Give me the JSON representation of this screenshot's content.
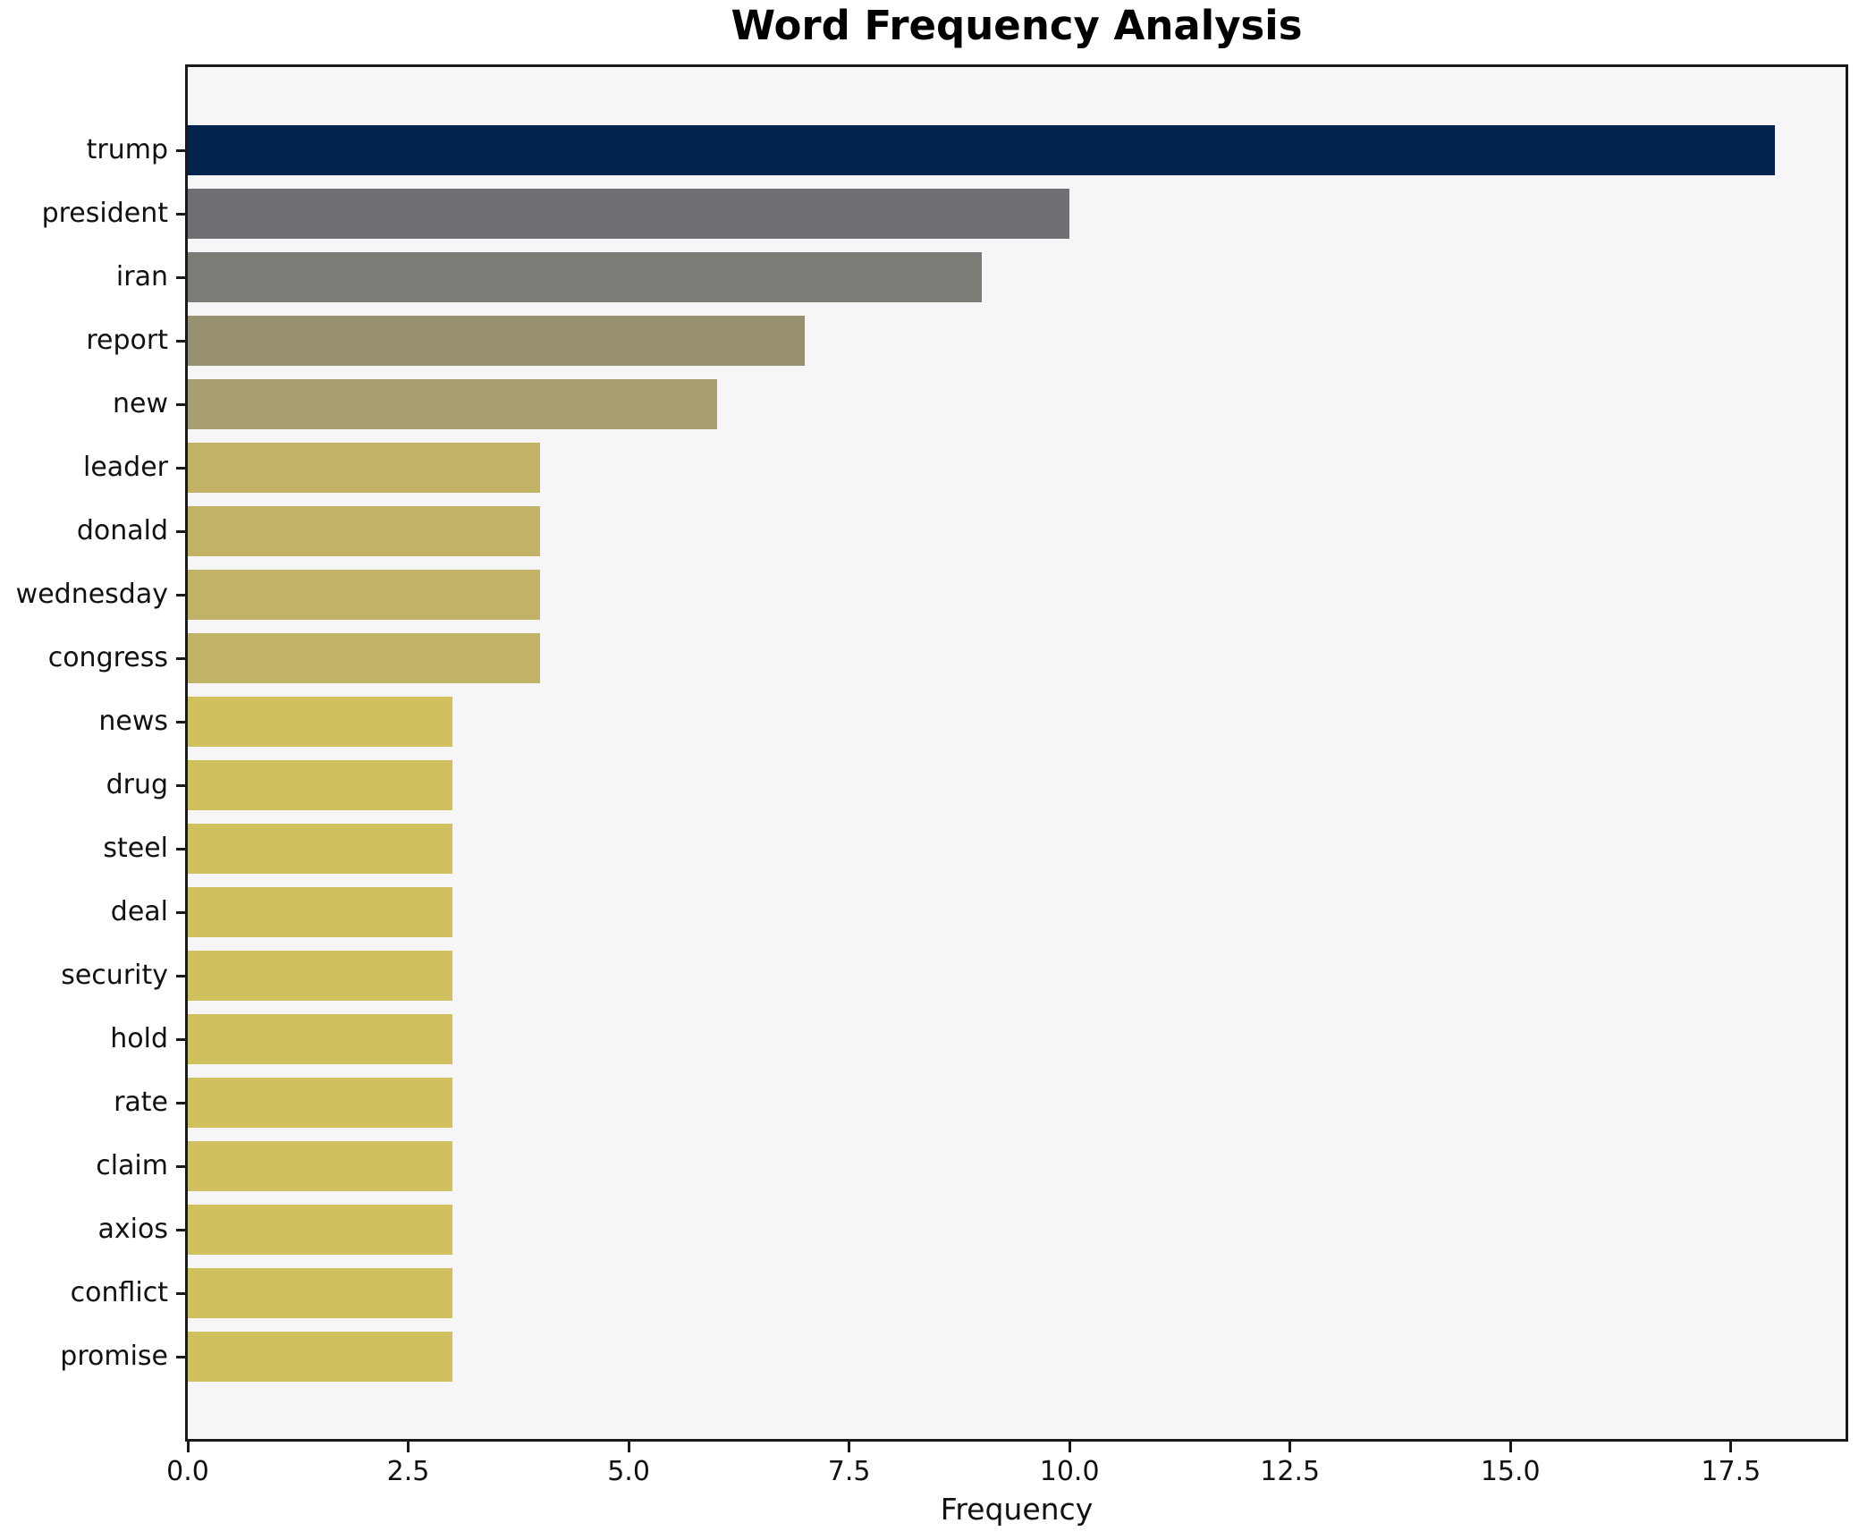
{
  "title": "Word Frequency Analysis",
  "axes": {
    "x_label": "Frequency",
    "y_label": ""
  },
  "style": {
    "figure_bg": "#ffffff",
    "plot_bg": "#f6f6f8",
    "spine_color": "#1a1a1a",
    "text_color": "#111111"
  },
  "chart_data": {
    "type": "bar",
    "orientation": "horizontal",
    "title": "Word Frequency Analysis",
    "xlabel": "Frequency",
    "ylabel": "",
    "categories": [
      "trump",
      "president",
      "iran",
      "report",
      "new",
      "leader",
      "donald",
      "wednesday",
      "congress",
      "news",
      "drug",
      "steel",
      "deal",
      "security",
      "hold",
      "rate",
      "claim",
      "axios",
      "conflict",
      "promise"
    ],
    "values": [
      18,
      10,
      9,
      7,
      6,
      4,
      4,
      4,
      4,
      3,
      3,
      3,
      3,
      3,
      3,
      3,
      3,
      3,
      3,
      3
    ],
    "bar_colors": [
      "#03234f",
      "#6e7073",
      "#7c7c77",
      "#979070",
      "#a69d70",
      "#c2b266",
      "#c2b266",
      "#c2b266",
      "#c2b266",
      "#d1c05e",
      "#d1c05e",
      "#d1c05e",
      "#d1c05e",
      "#d1c05e",
      "#d1c05e",
      "#d1c05e",
      "#d1c05e",
      "#d1c05e",
      "#d1c05e",
      "#d1c05e"
    ],
    "xlim": [
      0,
      18.8
    ],
    "xticks": [
      0.0,
      2.5,
      5.0,
      7.5,
      10.0,
      12.5,
      15.0,
      17.5
    ],
    "xtick_labels": [
      "0.0",
      "2.5",
      "5.0",
      "7.5",
      "10.0",
      "12.5",
      "15.0",
      "17.5"
    ],
    "grid": false,
    "legend": null
  }
}
